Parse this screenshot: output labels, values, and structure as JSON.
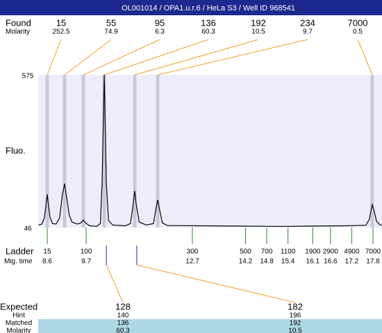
{
  "header": {
    "title": "OL001014 / OPA1.u.r.6 / HeLa S3 / Well ID 968541"
  },
  "found": {
    "label": "Found",
    "molarity_label": "Molarity",
    "peaks": [
      {
        "size": 15,
        "molarity": 252.5,
        "time": 8.6
      },
      {
        "size": 55,
        "molarity": 74.9,
        "time": 9.09
      },
      {
        "size": 95,
        "molarity": 6.3,
        "time": 9.62
      },
      {
        "size": 136,
        "molarity": 60.3,
        "time": 10.21
      },
      {
        "size": 192,
        "molarity": 10.5,
        "time": 11.07
      },
      {
        "size": 234,
        "molarity": 9.7,
        "time": 11.72
      },
      {
        "size": 7000,
        "molarity": 0.5,
        "time": 17.78
      }
    ]
  },
  "chart_data": {
    "type": "line",
    "ylabel": "Fluo.",
    "ylim": [
      46,
      575
    ],
    "yticks": [
      575,
      46
    ],
    "xlim": [
      8.345,
      18.055
    ],
    "color": "#000000",
    "x": [
      8.35,
      8.45,
      8.52,
      8.57,
      8.6,
      8.63,
      8.68,
      8.75,
      8.85,
      8.95,
      9.03,
      9.09,
      9.15,
      9.22,
      9.3,
      9.45,
      9.55,
      9.62,
      9.68,
      9.8,
      10.0,
      10.1,
      10.15,
      10.21,
      10.27,
      10.33,
      10.45,
      10.8,
      10.95,
      11.02,
      11.07,
      11.12,
      11.2,
      11.4,
      11.6,
      11.67,
      11.72,
      11.77,
      11.85,
      12.0,
      13,
      14,
      15,
      15.4,
      16,
      17,
      17.6,
      17.7,
      17.75,
      17.78,
      17.83,
      17.9,
      18.0,
      18.05
    ],
    "values": [
      55,
      58,
      80,
      130,
      161,
      130,
      80,
      60,
      58,
      80,
      160,
      198,
      150,
      90,
      65,
      58,
      62,
      72,
      62,
      52,
      50,
      60,
      200,
      575,
      200,
      70,
      55,
      52,
      60,
      120,
      173,
      120,
      65,
      55,
      60,
      110,
      142,
      110,
      62,
      53,
      52,
      51,
      50,
      50,
      51,
      52,
      54,
      75,
      110,
      125,
      105,
      68,
      55,
      54
    ]
  },
  "ladder": {
    "label": "Ladder",
    "time_label": "Mig. time",
    "sizes": [
      15,
      100,
      300,
      500,
      700,
      1100,
      1900,
      2900,
      4900,
      7000
    ],
    "times": [
      8.6,
      9.7,
      12.7,
      14.2,
      14.8,
      15.4,
      16.1,
      16.6,
      17.2,
      17.8
    ]
  },
  "expected": {
    "label": "Expected",
    "hint_label": "Hint",
    "matched_label": "Matched",
    "molarity_label": "Molarity",
    "items": [
      {
        "expected": 128,
        "hint": 140,
        "matched": 136,
        "molarity": 60.3,
        "time": 10.27
      },
      {
        "expected": 182,
        "hint": 196,
        "matched": 192,
        "molarity": 10.5,
        "time": 11.13
      }
    ]
  }
}
